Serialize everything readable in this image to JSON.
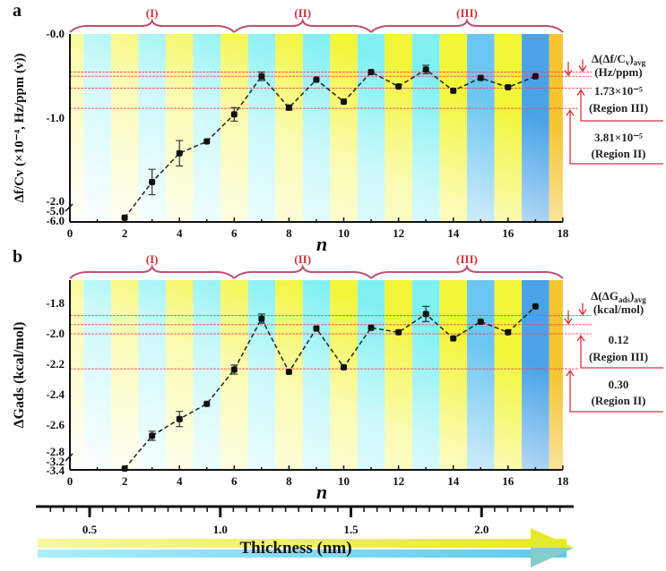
{
  "chart_data": [
    {
      "type": "line",
      "panel_label": "a",
      "ylabel": "Δf/Cv (×10⁻⁴, Hz/ppm (v))",
      "xlabel": "n",
      "xlim": [
        0,
        18
      ],
      "x_ticks": [
        "0",
        "2",
        "4",
        "6",
        "8",
        "10",
        "12",
        "14",
        "16",
        "18"
      ],
      "y_ticks": [
        "-0.0",
        "-1.0",
        "-2.0",
        "-5.0",
        "-6.0"
      ],
      "y_axis_break": [
        -2.0,
        -6.0
      ],
      "x": [
        2,
        3,
        4,
        5,
        6,
        7,
        8,
        9,
        10,
        11,
        12,
        13,
        14,
        15,
        16,
        17
      ],
      "values": [
        -5.0,
        -1.75,
        -1.41,
        -1.27,
        -0.95,
        -0.5,
        -0.87,
        -0.54,
        -0.8,
        -0.45,
        -0.62,
        -0.42,
        -0.67,
        -0.52,
        -0.63,
        -0.5
      ],
      "errors": [
        0,
        0.15,
        0.15,
        0.02,
        0.08,
        0.05,
        0.03,
        0.02,
        0.02,
        0.02,
        0.02,
        0.05,
        0.02,
        0.02,
        0.02,
        0.02
      ],
      "reference_lines": [
        -0.45,
        -0.5,
        -0.64,
        -0.88
      ],
      "regions": [
        {
          "label": "(I)",
          "from": 0,
          "to": 6
        },
        {
          "label": "(II)",
          "from": 6,
          "to": 11
        },
        {
          "label": "(III)",
          "from": 11,
          "to": 18
        }
      ],
      "annotation": {
        "head_main": "Δ(Δf/C",
        "head_sub": "v",
        "head_close": ")",
        "head_avg": "avg",
        "unit": "(Hz/ppm)",
        "v1": "1.73×10⁻⁵",
        "r1": "(Region III)",
        "v2": "3.81×10⁻⁵",
        "r2": "(Region II)"
      }
    },
    {
      "type": "line",
      "panel_label": "b",
      "ylabel": "ΔGads (kcal/mol)",
      "xlabel": "n",
      "xlim": [
        0,
        18
      ],
      "x_ticks": [
        "0",
        "2",
        "4",
        "6",
        "8",
        "10",
        "12",
        "14",
        "16",
        "18"
      ],
      "y_ticks": [
        "-1.8",
        "-2.0",
        "-2.2",
        "-2.4",
        "-2.6",
        "-2.8",
        "-3.2",
        "-3.4"
      ],
      "y_axis_break": [
        -2.8,
        -3.4
      ],
      "x": [
        2,
        3,
        4,
        5,
        6,
        7,
        8,
        9,
        10,
        11,
        12,
        13,
        14,
        15,
        16,
        17
      ],
      "values": [
        -3.35,
        -2.67,
        -2.56,
        -2.46,
        -2.235,
        -1.9,
        -2.25,
        -1.965,
        -2.22,
        -1.96,
        -1.99,
        -1.87,
        -2.03,
        -1.92,
        -1.99,
        -1.82
      ],
      "errors": [
        0,
        0.03,
        0.05,
        0.01,
        0.03,
        0.03,
        0.02,
        0.02,
        0.01,
        0.01,
        0.01,
        0.05,
        0.01,
        0.01,
        0.01,
        0.01
      ],
      "reference_lines": [
        -1.88,
        -1.94,
        -2.0,
        -2.23
      ],
      "regions": [
        {
          "label": "(I)",
          "from": 0,
          "to": 6
        },
        {
          "label": "(II)",
          "from": 6,
          "to": 11
        },
        {
          "label": "(III)",
          "from": 11,
          "to": 18
        }
      ],
      "annotation": {
        "head_main": "Δ(ΔG",
        "head_sub": "ads",
        "head_close": ")",
        "head_avg": "avg",
        "unit": "(kcal/mol)",
        "v1": "0.12",
        "r1": "(Region III)",
        "v2": "0.30",
        "r2": "(Region II)"
      }
    }
  ],
  "thickness_axis": {
    "label": "Thickness (nm)",
    "ticks": [
      "0.5",
      "1.0",
      "1.5",
      "2.0"
    ]
  },
  "colors": {
    "yellow": "#f2f538",
    "cyan": "#7ff0f2",
    "blue": "#4aa3e8",
    "orange": "#f5c531",
    "region": "#d6323c",
    "brace": "#c0506e"
  }
}
